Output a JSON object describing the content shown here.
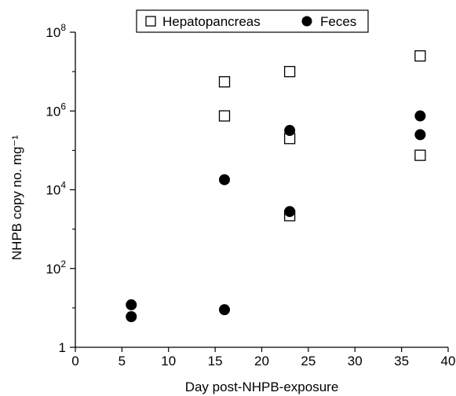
{
  "chart_data": {
    "type": "scatter",
    "xlabel": "Day post-NHPB-exposure",
    "ylabel": "NHPB copy no. mg⁻¹",
    "xlim": [
      0,
      40
    ],
    "xticks": [
      0,
      5,
      10,
      15,
      20,
      25,
      30,
      35,
      40
    ],
    "ylim": [
      1,
      100000000
    ],
    "yscale": "log",
    "yticks": [
      {
        "value": 1,
        "label": "1"
      },
      {
        "value": 100,
        "label": "10",
        "exp": "2"
      },
      {
        "value": 10000,
        "label": "10",
        "exp": "4"
      },
      {
        "value": 1000000,
        "label": "10",
        "exp": "6"
      },
      {
        "value": 100000000,
        "label": "10",
        "exp": "8"
      }
    ],
    "grid": false,
    "legend": "top-center",
    "series": [
      {
        "name": "Hepatopancreas",
        "marker": "open-square",
        "points": [
          {
            "x": 16,
            "y": 5500000
          },
          {
            "x": 16,
            "y": 750000
          },
          {
            "x": 23,
            "y": 10000000
          },
          {
            "x": 23,
            "y": 200000
          },
          {
            "x": 23,
            "y": 2200
          },
          {
            "x": 37,
            "y": 25000000
          },
          {
            "x": 37,
            "y": 75000
          }
        ]
      },
      {
        "name": "Feces",
        "marker": "filled-circle",
        "points": [
          {
            "x": 6,
            "y": 12
          },
          {
            "x": 6,
            "y": 6
          },
          {
            "x": 16,
            "y": 18000
          },
          {
            "x": 16,
            "y": 9
          },
          {
            "x": 23,
            "y": 320000
          },
          {
            "x": 23,
            "y": 2800
          },
          {
            "x": 37,
            "y": 750000
          },
          {
            "x": 37,
            "y": 250000
          }
        ]
      }
    ]
  }
}
